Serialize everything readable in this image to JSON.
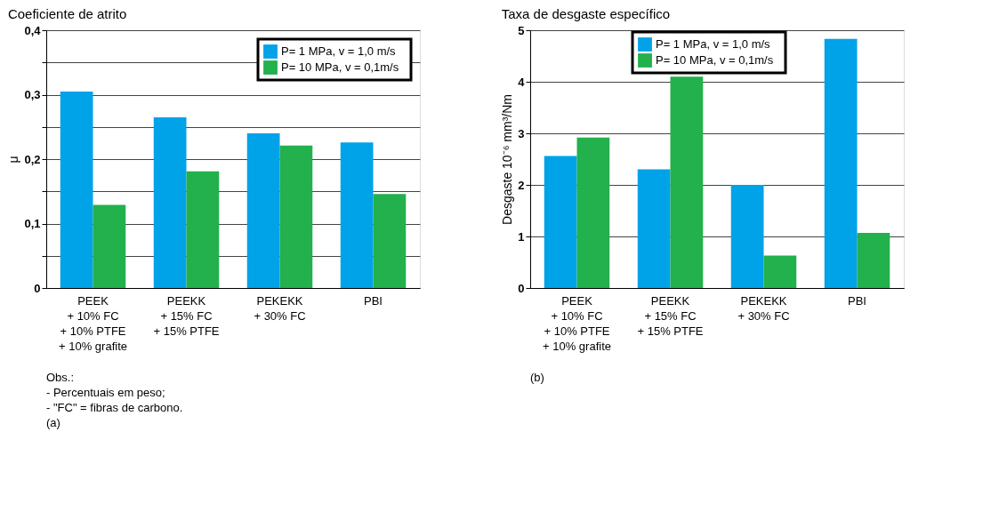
{
  "chart_data": [
    {
      "type": "bar",
      "title": "Coeficiente de atrito",
      "ylabel": "μ",
      "categories": [
        "PEEK\n+ 10% FC\n+ 10% PTFE\n+ 10% grafite",
        "PEEKK\n+ 15% FC\n+ 15% PTFE",
        "PEKEKK\n+ 30% FC",
        "PBI"
      ],
      "series": [
        {
          "name": "P=   1 MPa, v =  1,0 m/s",
          "color": "#00a2e8",
          "values": [
            0.305,
            0.265,
            0.24,
            0.226
          ]
        },
        {
          "name": "P= 10 MPa, v =  0,1m/s",
          "color": "#22b14c",
          "values": [
            0.129,
            0.181,
            0.221,
            0.146
          ]
        }
      ],
      "ylim": [
        0,
        0.4
      ],
      "yticks": [
        0,
        {
          "value": 0.05,
          "label": null
        },
        {
          "value": 0.1,
          "label": "0,1"
        },
        {
          "value": 0.15,
          "label": null
        },
        {
          "value": 0.2,
          "label": "0,2"
        },
        {
          "value": 0.25,
          "label": null
        },
        {
          "value": 0.3,
          "label": "0,3"
        },
        {
          "value": 0.35,
          "label": null
        },
        {
          "value": 0.4,
          "label": "0,4"
        }
      ],
      "grid": "y",
      "legend": "top right",
      "annotations": [
        "Obs.:",
        "- Percentuais em peso;",
        "- \"FC\" = fibras de carbono.",
        "(a)"
      ]
    },
    {
      "type": "bar",
      "title": "Taxa de desgaste específico",
      "ylabel": "Desgaste 10⁻⁶ mm³/Nm",
      "categories": [
        "PEEK\n+ 10% FC\n+ 10% PTFE\n+ 10% grafite",
        "PEEKK\n+ 15% FC\n+ 15% PTFE",
        "PEKEKK\n+ 30% FC",
        "PBI"
      ],
      "series": [
        {
          "name": "P=   1 MPa, v =  1,0 m/s",
          "color": "#00a2e8",
          "values": [
            2.56,
            2.3,
            2.0,
            4.83
          ]
        },
        {
          "name": "P= 10 MPa, v =  0,1m/s",
          "color": "#22b14c",
          "values": [
            2.92,
            4.1,
            0.63,
            1.07
          ]
        }
      ],
      "ylim": [
        0,
        5
      ],
      "yticks": [
        0,
        1,
        2,
        3,
        4,
        5
      ],
      "grid": "y",
      "legend": "top",
      "annotations": [
        "(b)"
      ]
    }
  ]
}
